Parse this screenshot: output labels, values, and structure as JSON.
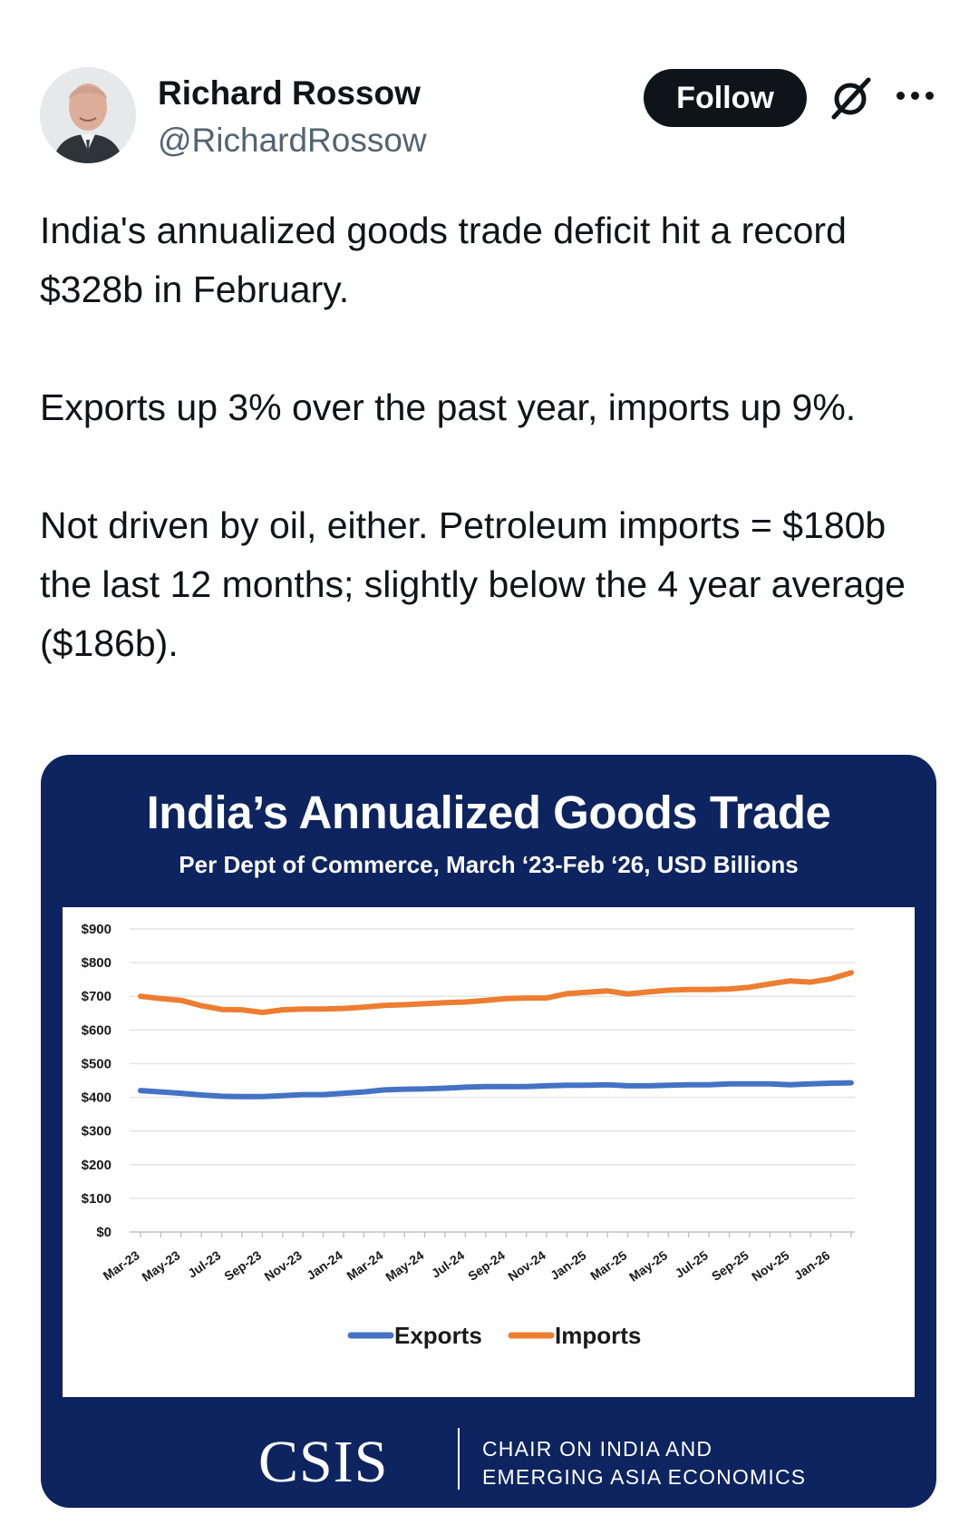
{
  "post": {
    "author_name": "Richard Rossow",
    "author_handle": "@RichardRossow",
    "follow_label": "Follow",
    "icons": {
      "grok": "grok-icon",
      "more": "more-icon",
      "avatar": "avatar"
    },
    "paragraphs": [
      "India's annualized goods trade deficit hit a record $328b in February.",
      "Exports up 3% over the past year, imports up 9%.",
      "Not driven by oil, either. Petroleum imports = $180b the last 12 months; slightly below the 4 year average ($186b)."
    ]
  },
  "media": {
    "title": "India’s Annualized Goods Trade",
    "subtitle": "Per Dept of Commerce, March ‘23-Feb ‘26, USD Billions",
    "logo_text": "CSIS",
    "chair_line1": "CHAIR ON INDIA AND",
    "chair_line2": "EMERGING ASIA ECONOMICS",
    "colors": {
      "navy": "#0d2460",
      "exports": "#4472c4",
      "imports": "#ed7d31"
    }
  },
  "chart_data": {
    "type": "line",
    "title": "India’s Annualized Goods Trade",
    "subtitle": "Per Dept of Commerce, March ‘23-Feb ‘26, USD Billions",
    "xlabel": "",
    "ylabel": "",
    "ylim": [
      0,
      900
    ],
    "yticks": [
      0,
      100,
      200,
      300,
      400,
      500,
      600,
      700,
      800,
      900
    ],
    "ytick_labels": [
      "$0",
      "$100",
      "$200",
      "$300",
      "$400",
      "$500",
      "$600",
      "$700",
      "$800",
      "$900"
    ],
    "x": [
      "Mar-23",
      "Apr-23",
      "May-23",
      "Jun-23",
      "Jul-23",
      "Aug-23",
      "Sep-23",
      "Oct-23",
      "Nov-23",
      "Dec-23",
      "Jan-24",
      "Feb-24",
      "Mar-24",
      "Apr-24",
      "May-24",
      "Jun-24",
      "Jul-24",
      "Aug-24",
      "Sep-24",
      "Oct-24",
      "Nov-24",
      "Dec-24",
      "Jan-25",
      "Feb-25",
      "Mar-25",
      "Apr-25",
      "May-25",
      "Jun-25",
      "Jul-25",
      "Aug-25",
      "Sep-25",
      "Oct-25",
      "Nov-25",
      "Dec-25",
      "Jan-26",
      "Feb-26"
    ],
    "xtick_labels": [
      "Mar-23",
      "May-23",
      "Jul-23",
      "Sep-23",
      "Nov-23",
      "Jan-24",
      "Mar-24",
      "May-24",
      "Jul-24",
      "Sep-24",
      "Nov-24",
      "Jan-25",
      "Mar-25",
      "May-25",
      "Jul-25",
      "Sep-25",
      "Nov-25",
      "Jan-26"
    ],
    "series": [
      {
        "name": "Exports",
        "color": "#4472c4",
        "values": [
          420,
          416,
          412,
          407,
          403,
          402,
          402,
          405,
          408,
          408,
          412,
          416,
          422,
          424,
          425,
          427,
          430,
          432,
          432,
          432,
          434,
          436,
          436,
          437,
          434,
          434,
          436,
          437,
          437,
          440,
          440,
          440,
          437,
          440,
          442,
          443
        ]
      },
      {
        "name": "Imports",
        "color": "#ed7d31",
        "values": [
          700,
          693,
          688,
          672,
          661,
          660,
          652,
          660,
          662,
          662,
          664,
          668,
          673,
          675,
          678,
          681,
          683,
          688,
          693,
          695,
          695,
          708,
          712,
          716,
          707,
          713,
          718,
          720,
          720,
          722,
          727,
          737,
          746,
          742,
          752,
          770
        ]
      }
    ],
    "legend": "bottom",
    "grid": true
  }
}
